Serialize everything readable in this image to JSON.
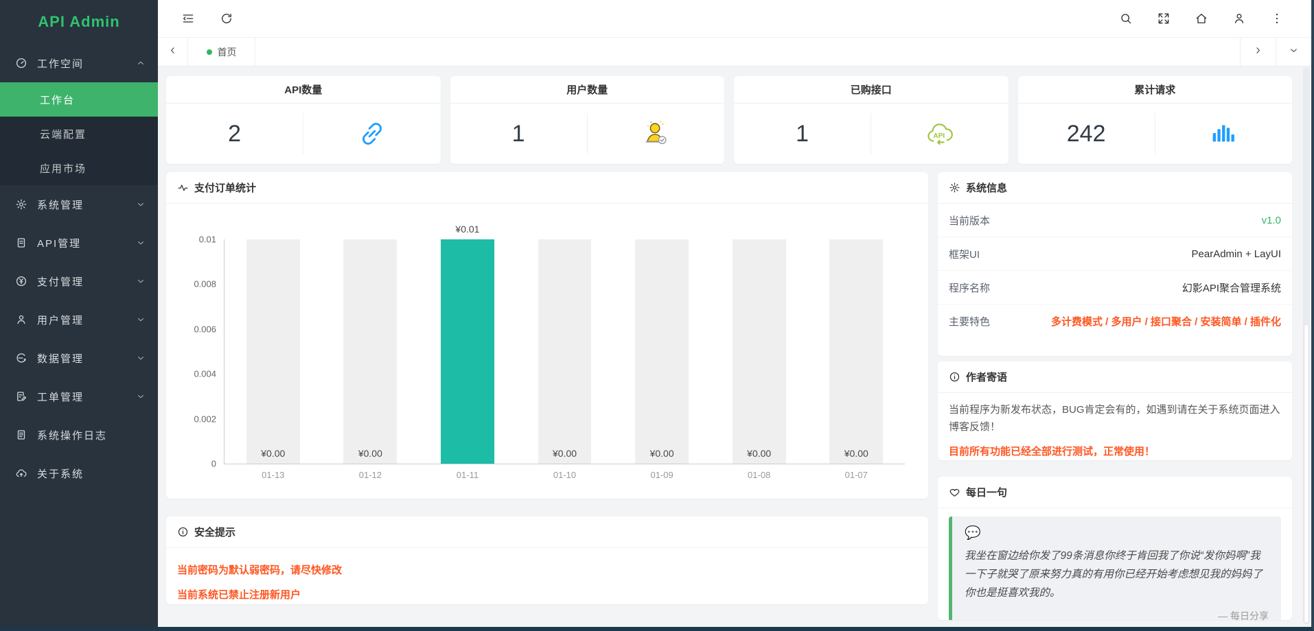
{
  "sidebar": {
    "logo": "API Admin",
    "menu": [
      {
        "label": "工作空间",
        "icon": "dashboard-icon",
        "expanded": true,
        "has_children": true,
        "children": [
          {
            "label": "工作台",
            "active": true
          },
          {
            "label": "云端配置",
            "active": false
          },
          {
            "label": "应用市场",
            "active": false
          }
        ]
      },
      {
        "label": "系统管理",
        "icon": "gear-icon",
        "has_children": true
      },
      {
        "label": "API管理",
        "icon": "document-icon",
        "has_children": true
      },
      {
        "label": "支付管理",
        "icon": "yen-circle-icon",
        "has_children": true
      },
      {
        "label": "用户管理",
        "icon": "person-icon",
        "has_children": true
      },
      {
        "label": "数据管理",
        "icon": "data-circle-icon",
        "has_children": true
      },
      {
        "label": "工单管理",
        "icon": "work-order-icon",
        "has_children": true
      },
      {
        "label": "系统操作日志",
        "icon": "log-icon",
        "has_children": false
      },
      {
        "label": "关于系统",
        "icon": "cloud-icon",
        "has_children": false
      }
    ]
  },
  "topbar": {
    "left_icons": [
      "collapse-icon",
      "refresh-icon"
    ],
    "right_icons": [
      "search-icon",
      "fullscreen-icon",
      "home-icon",
      "user-icon",
      "more-icon"
    ]
  },
  "tabbar": {
    "tabs": [
      {
        "label": "首页",
        "active": true
      }
    ]
  },
  "stats": [
    {
      "title": "API数量",
      "value": "2",
      "icon": "plug-icon",
      "icon_color": "#1E9FFF"
    },
    {
      "title": "用户数量",
      "value": "1",
      "icon": "user-check-icon",
      "icon_color": "#FFC60A"
    },
    {
      "title": "已购接口",
      "value": "1",
      "icon": "cloud-api-icon",
      "icon_color": "#9DC63B"
    },
    {
      "title": "累计请求",
      "value": "242",
      "icon": "bar-chart-icon",
      "icon_color": "#1E9FFF"
    }
  ],
  "chart_panel": {
    "title": "支付订单统计",
    "icon": "activity-icon"
  },
  "chart_data": {
    "type": "bar",
    "title": "支付订单统计",
    "categories": [
      "01-13",
      "01-12",
      "01-11",
      "01-10",
      "01-09",
      "01-08",
      "01-07"
    ],
    "values": [
      0,
      0,
      0.01,
      0,
      0,
      0,
      0
    ],
    "bar_labels": [
      "¥0.00",
      "¥0.00",
      "¥0.01",
      "¥0.00",
      "¥0.00",
      "¥0.00",
      "¥0.00"
    ],
    "ylim": [
      0,
      0.01
    ],
    "yticks": [
      0,
      0.002,
      0.004,
      0.006,
      0.008,
      0.01
    ],
    "ytick_labels": [
      "0",
      "0.002",
      "0.004",
      "0.006",
      "0.008",
      "0.01"
    ],
    "bar_color": "#1CBCA6",
    "bar_background_color": "#EFEFEF",
    "grid": false,
    "legend": "none",
    "xlabel": "",
    "ylabel": ""
  },
  "system_info": {
    "title": "系统信息",
    "icon": "gear-icon",
    "rows": [
      {
        "label": "当前版本",
        "value": "v1.0",
        "value_color": "#36B368",
        "bold": false
      },
      {
        "label": "框架UI",
        "value": "PearAdmin + LayUI",
        "value_color": "#333333",
        "bold": false
      },
      {
        "label": "程序名称",
        "value": "幻影API聚合管理系统",
        "value_color": "#333333",
        "bold": false
      },
      {
        "label": "主要特色",
        "value": "多计费模式 / 多用户 / 接口聚合 / 安装简单 / 插件化",
        "value_color": "#FF5722",
        "bold": true
      }
    ]
  },
  "author_note": {
    "title": "作者寄语",
    "icon": "info-icon",
    "text": "当前程序为新发布状态，BUG肯定会有的，如遇到请在关于系统页面进入博客反馈！",
    "highlight": "目前所有功能已经全部进行测试，正常使用！",
    "highlight_color": "#FF5722"
  },
  "daily_quote": {
    "title": "每日一句",
    "icon": "heart-icon",
    "emoji": "💬",
    "text": "我坐在窗边给你发了99条消息你终于肯回我了你说“发你妈啊”我一下子就哭了原来努力真的有用你已经开始考虑想见我的妈妈了你也是挺喜欢我的。",
    "source": "— 每日分享"
  },
  "security_tips": {
    "title": "安全提示",
    "icon": "info-icon",
    "color": "#FF5722",
    "items": [
      "当前密码为默认弱密码，请尽快修改",
      "当前系统已禁止注册新用户"
    ]
  },
  "colors": {
    "sidebar_bg": "#28333E",
    "accent_green": "#3EB36B",
    "logo_green": "#2FC36E",
    "teal_bar": "#1CBCA6",
    "orange": "#FF5722",
    "blue": "#1E9FFF"
  }
}
